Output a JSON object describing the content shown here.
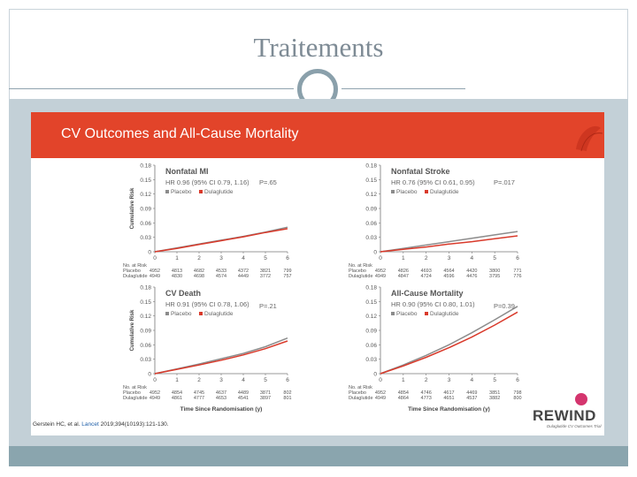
{
  "slide": {
    "title": "Traitements"
  },
  "figure": {
    "title": "CV Outcomes and All-Cause Mortality",
    "citation_authors": "Gerstein HC, et al.",
    "citation_journal": "Lancet",
    "citation_ref": "2019;394(10193):121-130.",
    "logo_text": "REWIND",
    "logo_subtitle": "Dulaglutide CV Outcomes Trial",
    "colors": {
      "header": "#e2442a",
      "placebo": "#8c8c8c",
      "dulaglutide": "#d93a2b"
    }
  },
  "chart_data": [
    {
      "type": "line",
      "title": "Nonfatal MI",
      "subtitle": "HR 0.96 (95% CI 0.79, 1.16)",
      "pvalue": "P=.65",
      "ylabel": "Cumulative Risk",
      "xlabel": "",
      "x": [
        0,
        1,
        2,
        3,
        4,
        5,
        6
      ],
      "xticks": [
        "0",
        "1",
        "2",
        "3",
        "4",
        "5",
        "6"
      ],
      "yticks": [
        "0",
        "0.03",
        "0.06",
        "0.09",
        "0.12",
        "0.15",
        "0.18"
      ],
      "ylim": [
        0,
        0.18
      ],
      "xlim": [
        0,
        6
      ],
      "series": [
        {
          "name": "Placebo",
          "values": [
            0,
            0.008,
            0.016,
            0.024,
            0.032,
            0.041,
            0.051
          ]
        },
        {
          "name": "Dulaglutide",
          "values": [
            0,
            0.007,
            0.015,
            0.023,
            0.031,
            0.04,
            0.048
          ]
        }
      ],
      "risk_header": "No. at Risk",
      "risk_rows": [
        {
          "label": "Placebo",
          "values": [
            "4952",
            "4813",
            "4682",
            "4533",
            "4372",
            "3821",
            "799"
          ]
        },
        {
          "label": "Dulaglutide",
          "values": [
            "4949",
            "4830",
            "4698",
            "4574",
            "4449",
            "3772",
            "757"
          ]
        }
      ]
    },
    {
      "type": "line",
      "title": "Nonfatal Stroke",
      "subtitle": "HR 0.76 (95% CI 0.61, 0.95)",
      "pvalue": "P=.017",
      "ylabel": "",
      "xlabel": "",
      "x": [
        0,
        1,
        2,
        3,
        4,
        5,
        6
      ],
      "xticks": [
        "0",
        "1",
        "2",
        "3",
        "4",
        "5",
        "6"
      ],
      "yticks": [
        "0",
        "0.03",
        "0.06",
        "0.09",
        "0.12",
        "0.15",
        "0.18"
      ],
      "ylim": [
        0,
        0.18
      ],
      "xlim": [
        0,
        6
      ],
      "series": [
        {
          "name": "Placebo",
          "values": [
            0,
            0.007,
            0.014,
            0.021,
            0.028,
            0.035,
            0.042
          ]
        },
        {
          "name": "Dulaglutide",
          "values": [
            0,
            0.005,
            0.01,
            0.016,
            0.021,
            0.027,
            0.033
          ]
        }
      ],
      "risk_header": "No. at Risk",
      "risk_rows": [
        {
          "label": "Placebo",
          "values": [
            "4952",
            "4826",
            "4693",
            "4564",
            "4420",
            "3800",
            "771"
          ]
        },
        {
          "label": "Dulaglutide",
          "values": [
            "4949",
            "4847",
            "4724",
            "4596",
            "4476",
            "3795",
            "776"
          ]
        }
      ]
    },
    {
      "type": "line",
      "title": "CV Death",
      "subtitle": "HR 0.91 (95% CI 0.78, 1.06)",
      "pvalue": "P=.21",
      "ylabel": "Cumulative Risk",
      "xlabel": "Time Since Randomisation (y)",
      "x": [
        0,
        1,
        2,
        3,
        4,
        5,
        6
      ],
      "xticks": [
        "0",
        "1",
        "2",
        "3",
        "4",
        "5",
        "6"
      ],
      "yticks": [
        "0",
        "0.03",
        "0.06",
        "0.09",
        "0.12",
        "0.15",
        "0.18"
      ],
      "ylim": [
        0,
        0.18
      ],
      "xlim": [
        0,
        6
      ],
      "series": [
        {
          "name": "Placebo",
          "values": [
            0,
            0.01,
            0.02,
            0.031,
            0.042,
            0.056,
            0.074
          ]
        },
        {
          "name": "Dulaglutide",
          "values": [
            0,
            0.009,
            0.018,
            0.028,
            0.039,
            0.052,
            0.068
          ]
        }
      ],
      "risk_header": "No. at Risk",
      "risk_rows": [
        {
          "label": "Placebo",
          "values": [
            "4952",
            "4854",
            "4745",
            "4637",
            "4489",
            "3871",
            "802"
          ]
        },
        {
          "label": "Dulaglutide",
          "values": [
            "4949",
            "4861",
            "4777",
            "4653",
            "4541",
            "3897",
            "801"
          ]
        }
      ]
    },
    {
      "type": "line",
      "title": "All-Cause Mortality",
      "subtitle": "HR 0.90 (95% CI 0.80, 1.01)",
      "pvalue": "P=0.39",
      "ylabel": "",
      "xlabel": "Time Since Randomisation (y)",
      "x": [
        0,
        1,
        2,
        3,
        4,
        5,
        6
      ],
      "xticks": [
        "0",
        "1",
        "2",
        "3",
        "4",
        "5",
        "6"
      ],
      "yticks": [
        "0",
        "0.03",
        "0.06",
        "0.09",
        "0.12",
        "0.15",
        "0.18"
      ],
      "ylim": [
        0,
        0.18
      ],
      "xlim": [
        0,
        6
      ],
      "series": [
        {
          "name": "Placebo",
          "values": [
            0,
            0.018,
            0.038,
            0.06,
            0.085,
            0.112,
            0.14
          ]
        },
        {
          "name": "Dulaglutide",
          "values": [
            0,
            0.016,
            0.034,
            0.054,
            0.076,
            0.101,
            0.128
          ]
        }
      ],
      "risk_header": "No. at Risk",
      "risk_rows": [
        {
          "label": "Placebo",
          "values": [
            "4952",
            "4854",
            "4746",
            "4617",
            "4469",
            "3851",
            "798"
          ]
        },
        {
          "label": "Dulaglutide",
          "values": [
            "4949",
            "4864",
            "4773",
            "4651",
            "4537",
            "3882",
            "800"
          ]
        }
      ]
    }
  ]
}
